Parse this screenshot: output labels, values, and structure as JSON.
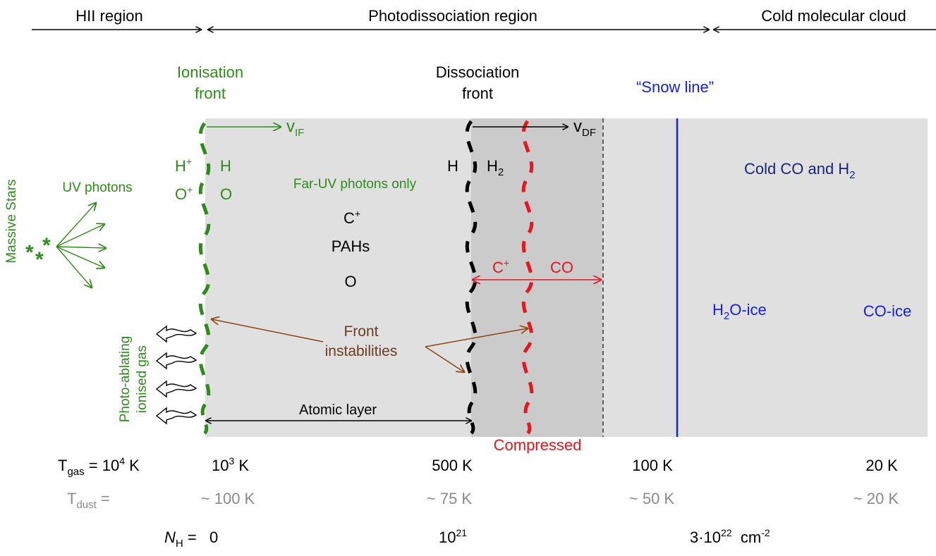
{
  "colors": {
    "green": "#2e8b1a",
    "black": "#000000",
    "red": "#e8141e",
    "blue": "#1420e6",
    "navy": "#1a237e",
    "brown": "#8b4513",
    "brown_text": "#6b3b24",
    "gray_text": "#8a8a8a",
    "light_gray": "#e0e0e0",
    "mid_gray": "#cbcbcb"
  },
  "regions": {
    "hii": "HII region",
    "pdr": "Photodissociation region",
    "cloud": "Cold molecular cloud"
  },
  "fronts": {
    "ionisation": [
      "Ionisation",
      "front"
    ],
    "dissociation": [
      "Dissociation",
      "front"
    ],
    "snow_line": "“Snow line”"
  },
  "velocities": {
    "v_if": "v",
    "v_if_sub": "IF",
    "v_df": "v",
    "v_df_sub": "DF"
  },
  "species": {
    "h_plus": "H",
    "h_plus_sup": "+",
    "h": "H",
    "o_plus": "O",
    "o_plus_sup": "+",
    "o": "O",
    "far_uv": "Far-UV photons only",
    "c_plus": "C",
    "c_plus_sup": "+",
    "pahs": "PAHs",
    "o2": "O",
    "h_df": "H",
    "h2": "H",
    "h2_sub": "2",
    "c_plus_red": "C",
    "c_plus_red_sup": "+",
    "co_red": "CO",
    "cold_co_h2": "Cold CO and H",
    "cold_co_h2_sub": "2",
    "h2o_ice_a": "H",
    "h2o_ice_sub": "2",
    "h2o_ice_b": "O-ice",
    "co_ice": "CO-ice"
  },
  "labels": {
    "uv_photons": "UV photons",
    "massive_stars": "Massive Stars",
    "photo_ablating": [
      "Photo-ablating",
      "ionised gas"
    ],
    "front_instabilities": [
      "Front",
      "instabilities"
    ],
    "atomic_layer": "Atomic layer",
    "compressed": "Compressed"
  },
  "rows": {
    "tgas_label": "T",
    "tgas_sub": "gas",
    "tgas_eq": " = 10",
    "tgas_exp": "4",
    "tgas_unit": " K",
    "tgas_values": [
      {
        "base": "10",
        "exp": "3",
        "unit": " K"
      },
      {
        "base": "500 K",
        "exp": "",
        "unit": ""
      },
      {
        "base": "100 K",
        "exp": "",
        "unit": ""
      },
      {
        "base": "20 K",
        "exp": "",
        "unit": ""
      }
    ],
    "tdust_label": "T",
    "tdust_sub": "dust",
    "tdust_eq": " =",
    "tdust_values": [
      "~ 100 K",
      "~ 75 K",
      "~ 50 K",
      "~ 20 K"
    ],
    "nh_label": "N",
    "nh_sub": "H",
    "nh_eq": " =   0",
    "nh_mid_base": "10",
    "nh_mid_exp": "21",
    "nh_right_base": "3·10",
    "nh_right_exp": "22",
    "nh_right_unit": "  cm",
    "nh_right_unit_exp": "-2"
  }
}
